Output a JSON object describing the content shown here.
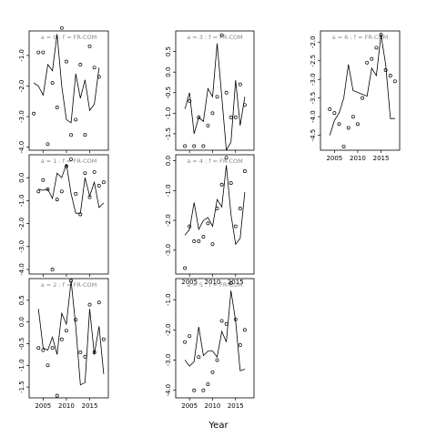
{
  "chart_data": {
    "type": "line",
    "xlabel": "Year",
    "xticks": [
      2005,
      2010,
      2015
    ],
    "xlim": [
      2002,
      2019
    ],
    "panels": [
      {
        "label": "a = 0  :  f = FR-COM",
        "ylim": [
          -4.1,
          -0.2
        ],
        "yticks": [
          -1.0,
          -2.0,
          -3.0,
          -4.0
        ],
        "line": {
          "x": [
            2003,
            2004,
            2005,
            2006,
            2007,
            2008,
            2009,
            2010,
            2011,
            2012,
            2013,
            2014,
            2015,
            2016,
            2017,
            2018
          ],
          "y": [
            -1.9,
            -2.0,
            -2.3,
            -1.3,
            -1.5,
            -0.3,
            -2.0,
            -3.1,
            -3.2,
            -1.6,
            -2.4,
            -1.8,
            -2.8,
            -2.6,
            -1.4,
            null
          ]
        },
        "points": {
          "x": [
            2003,
            2004,
            2005,
            2006,
            2007,
            2008,
            2009,
            2010,
            2011,
            2012,
            2013,
            2014,
            2015,
            2016,
            2017,
            2018
          ],
          "y": [
            -2.9,
            -0.9,
            -0.9,
            -3.9,
            -1.9,
            -2.7,
            -0.1,
            -1.2,
            -3.6,
            -3.1,
            -1.3,
            -3.6,
            -0.7,
            -1.4,
            -1.7,
            null
          ]
        }
      },
      {
        "label": "a = 3  :  f = FR-COM",
        "ylim": [
          -1.9,
          1.0
        ],
        "yticks": [
          0.5,
          0.0,
          -0.5,
          -1.0,
          -1.5
        ],
        "line": {
          "x": [
            2004,
            2005,
            2006,
            2007,
            2008,
            2009,
            2010,
            2011,
            2012,
            2013,
            2014,
            2015,
            2016,
            2017
          ],
          "y": [
            -0.9,
            -0.5,
            -1.5,
            -1.1,
            -1.2,
            -0.4,
            -0.6,
            0.7,
            -0.6,
            -1.9,
            -1.7,
            -0.2,
            -1.3,
            -0.6
          ]
        },
        "points": {
          "x": [
            2004,
            2005,
            2006,
            2007,
            2008,
            2009,
            2010,
            2011,
            2012,
            2013,
            2014,
            2015,
            2016,
            2017
          ],
          "y": [
            -1.8,
            -0.7,
            -1.8,
            -1.1,
            -1.8,
            -1.3,
            -1.0,
            -0.6,
            0.9,
            -0.5,
            -1.1,
            -1.1,
            -0.3,
            -0.8
          ]
        }
      },
      {
        "label": "a = 6  :  f = FR-COM",
        "ylim": [
          -4.9,
          -1.7
        ],
        "yticks": [
          -2.0,
          -2.5,
          -3.0,
          -3.5,
          -4.0,
          -4.5
        ],
        "line": {
          "x": [
            2004,
            2005,
            2006,
            2007,
            2008,
            2009,
            2010,
            2011,
            2012,
            2013,
            2014,
            2015,
            2016,
            2017,
            2018
          ],
          "y": [
            -4.5,
            -4.1,
            -3.9,
            -3.5,
            -2.6,
            -3.3,
            -3.35,
            -3.4,
            -3.45,
            -2.7,
            -2.9,
            -1.8,
            -2.6,
            -4.05,
            -4.05
          ]
        },
        "points": {
          "x": [
            2004,
            2005,
            2006,
            2007,
            2008,
            2009,
            2010,
            2011,
            2012,
            2013,
            2014,
            2015,
            2016,
            2017,
            2018
          ],
          "y": [
            -3.8,
            -3.9,
            -4.2,
            -4.8,
            -4.3,
            -4.0,
            -4.2,
            -3.5,
            -2.55,
            -2.45,
            -2.15,
            -1.8,
            -2.75,
            -2.9,
            -3.05
          ]
        }
      },
      {
        "label": "a = 1  :  f = FR-COM",
        "ylim": [
          -4.2,
          1.0
        ],
        "yticks": [
          0.0,
          -1.0,
          -2.0,
          -3.0,
          -4.0
        ],
        "line": {
          "x": [
            2004,
            2005,
            2006,
            2007,
            2008,
            2009,
            2010,
            2011,
            2012,
            2013,
            2014,
            2015,
            2016,
            2017,
            2018
          ],
          "y": [
            -0.5,
            -0.55,
            -0.5,
            -0.9,
            0.2,
            0.0,
            0.6,
            -0.7,
            -1.55,
            -1.55,
            0.0,
            -0.8,
            -0.2,
            -1.3,
            -1.1
          ]
        },
        "points": {
          "x": [
            2004,
            2005,
            2006,
            2007,
            2008,
            2009,
            2010,
            2011,
            2012,
            2013,
            2014,
            2015,
            2016,
            2017,
            2018
          ],
          "y": [
            -0.6,
            -0.1,
            -0.5,
            -4.0,
            -0.95,
            -0.6,
            0.5,
            0.8,
            -0.7,
            -1.6,
            0.2,
            -0.85,
            0.25,
            -0.35,
            -0.2
          ]
        }
      },
      {
        "label": "a = 4  :  f = FR-COM",
        "ylim": [
          -3.8,
          0.2
        ],
        "yticks": [
          0.0,
          -1.0,
          -2.0,
          -3.0
        ],
        "line": {
          "x": [
            2004,
            2005,
            2006,
            2007,
            2008,
            2009,
            2010,
            2011,
            2012,
            2013,
            2014,
            2015,
            2016,
            2017
          ],
          "y": [
            -2.5,
            -2.3,
            -1.4,
            -2.3,
            -2.0,
            -1.9,
            -2.2,
            -1.3,
            -1.55,
            -0.15,
            -1.8,
            -2.8,
            -2.6,
            -1.05
          ]
        },
        "points": {
          "x": [
            2004,
            2005,
            2006,
            2007,
            2008,
            2009,
            2010,
            2011,
            2012,
            2013,
            2014,
            2015,
            2016,
            2017
          ],
          "y": [
            -3.6,
            -2.2,
            -2.7,
            -2.7,
            -2.55,
            -2.1,
            -2.8,
            -1.6,
            -0.8,
            0.1,
            -0.75,
            -2.2,
            -1.6,
            -0.35
          ]
        }
      },
      {
        "label": "a = 2  :  f = FR-COM",
        "ylim": [
          -1.75,
          1.0
        ],
        "yticks": [
          0.5,
          0.0,
          -0.5,
          -1.0,
          -1.5
        ],
        "line": {
          "x": [
            2004,
            2005,
            2006,
            2007,
            2008,
            2009,
            2010,
            2011,
            2012,
            2013,
            2014,
            2015,
            2016,
            2017,
            2018
          ],
          "y": [
            0.3,
            -0.6,
            -0.65,
            -0.35,
            -0.75,
            0.2,
            -0.05,
            0.95,
            -0.1,
            -1.45,
            -1.4,
            0.3,
            -0.75,
            -0.1,
            -1.2
          ]
        },
        "points": {
          "x": [
            2004,
            2005,
            2006,
            2007,
            2008,
            2009,
            2010,
            2011,
            2012,
            2013,
            2014,
            2015,
            2016,
            2017,
            2018
          ],
          "y": [
            -0.6,
            -0.65,
            -1.0,
            -0.6,
            -1.7,
            -0.4,
            -0.2,
            0.95,
            0.05,
            -0.7,
            -0.8,
            0.4,
            -0.7,
            0.45,
            -0.4
          ]
        }
      },
      {
        "label": "a = 5  :  f = FR-COM",
        "ylim": [
          -4.25,
          -0.3
        ],
        "yticks": [
          -1.0,
          -2.0,
          -3.0,
          -4.0
        ],
        "line": {
          "x": [
            2004,
            2005,
            2006,
            2007,
            2008,
            2009,
            2010,
            2011,
            2012,
            2013,
            2014,
            2015,
            2016,
            2017
          ],
          "y": [
            -3.0,
            -3.2,
            -3.05,
            -1.9,
            -2.85,
            -2.7,
            -2.7,
            -2.9,
            -2.05,
            -2.4,
            -0.7,
            -1.7,
            -3.35,
            -3.3
          ]
        },
        "points": {
          "x": [
            2004,
            2005,
            2006,
            2007,
            2008,
            2009,
            2010,
            2011,
            2012,
            2013,
            2014,
            2015,
            2016,
            2017
          ],
          "y": [
            -2.4,
            -2.2,
            -4.0,
            -2.9,
            -4.0,
            -3.8,
            -3.4,
            -3.0,
            -1.7,
            -1.8,
            -0.45,
            -1.65,
            -2.5,
            -2.0
          ]
        }
      }
    ]
  }
}
